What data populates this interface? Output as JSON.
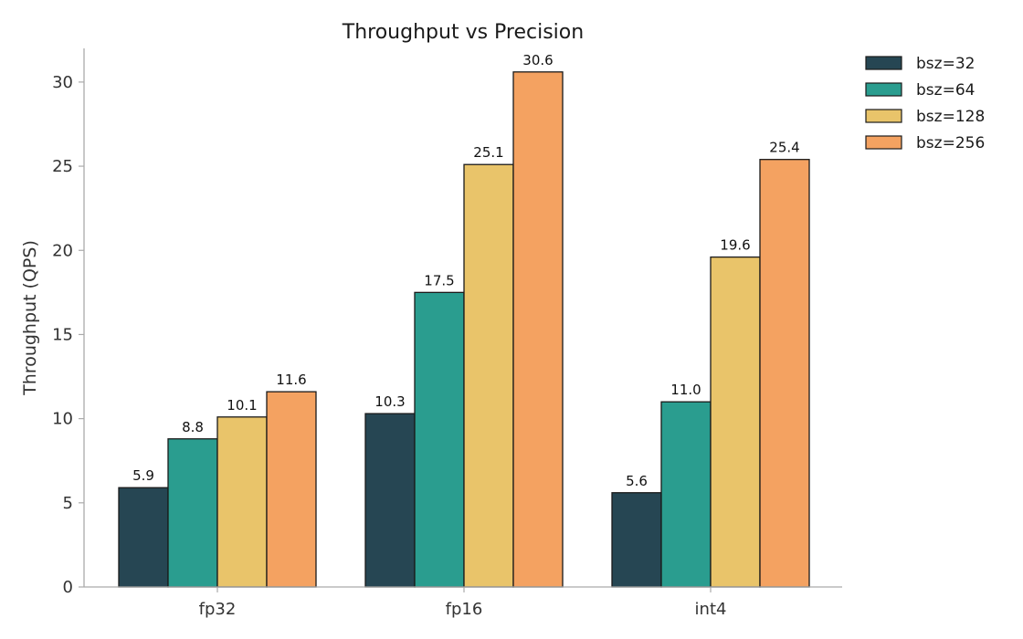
{
  "chart_data": {
    "type": "bar",
    "title": "Throughput vs Precision",
    "xlabel": "",
    "ylabel": "Throughput (QPS)",
    "ylim": [
      0,
      32
    ],
    "yticks": [
      0,
      5,
      10,
      15,
      20,
      25,
      30
    ],
    "categories": [
      "fp32",
      "fp16",
      "int4"
    ],
    "series": [
      {
        "name": "bsz=32",
        "color": "#264653",
        "values": [
          5.9,
          10.3,
          5.6
        ]
      },
      {
        "name": "bsz=64",
        "color": "#2a9d8f",
        "values": [
          8.8,
          17.5,
          11.0
        ]
      },
      {
        "name": "bsz=128",
        "color": "#e9c46a",
        "values": [
          10.1,
          25.1,
          19.6
        ]
      },
      {
        "name": "bsz=256",
        "color": "#f4a261",
        "values": [
          11.6,
          30.6,
          25.4
        ]
      }
    ],
    "grid": false,
    "legend_position": "outside top-right",
    "value_labels": true
  }
}
